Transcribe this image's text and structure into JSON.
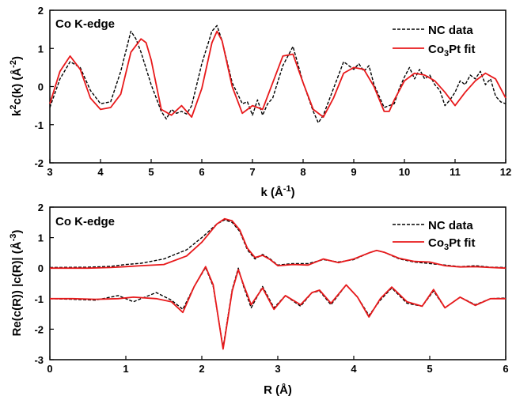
{
  "chart_data": [
    {
      "type": "line",
      "annotation": "Co K-edge",
      "xlabel": "k (Å⁻¹)",
      "ylabel": "k²c(k) (Å⁻²)",
      "xlim": [
        3,
        12
      ],
      "ylim": [
        -2,
        2
      ],
      "xticks": [
        3,
        4,
        5,
        6,
        7,
        8,
        9,
        10,
        11,
        12
      ],
      "yticks": [
        -2,
        -1,
        0,
        1,
        2
      ],
      "legend": "top-right",
      "series": [
        {
          "name": "NC data",
          "color": "#000000",
          "style": "dashed",
          "x": [
            3.0,
            3.2,
            3.4,
            3.6,
            3.8,
            4.0,
            4.2,
            4.4,
            4.6,
            4.7,
            4.8,
            5.0,
            5.2,
            5.3,
            5.4,
            5.5,
            5.6,
            5.7,
            5.8,
            6.0,
            6.2,
            6.3,
            6.4,
            6.6,
            6.8,
            6.9,
            7.0,
            7.1,
            7.2,
            7.3,
            7.4,
            7.6,
            7.8,
            8.0,
            8.2,
            8.3,
            8.4,
            8.6,
            8.7,
            8.8,
            9.0,
            9.1,
            9.2,
            9.3,
            9.4,
            9.6,
            9.7,
            9.8,
            9.9,
            10.0,
            10.1,
            10.2,
            10.3,
            10.4,
            10.5,
            10.6,
            10.7,
            10.8,
            10.9,
            11.0,
            11.1,
            11.2,
            11.3,
            11.4,
            11.5,
            11.6,
            11.7,
            11.8,
            11.9,
            12.0
          ],
          "values": [
            -0.55,
            0.2,
            0.65,
            0.5,
            -0.1,
            -0.45,
            -0.4,
            0.4,
            1.45,
            1.25,
            0.9,
            0.05,
            -0.65,
            -0.85,
            -0.6,
            -0.7,
            -0.65,
            -0.72,
            -0.5,
            0.6,
            1.45,
            1.6,
            1.2,
            0.1,
            -0.45,
            -0.4,
            -0.75,
            -0.35,
            -0.75,
            -0.45,
            -0.3,
            0.55,
            1.05,
            0.1,
            -0.65,
            -0.95,
            -0.75,
            -0.05,
            0.3,
            0.65,
            0.45,
            0.6,
            0.4,
            0.55,
            0.05,
            -0.55,
            -0.5,
            -0.45,
            -0.05,
            0.25,
            0.5,
            0.2,
            0.45,
            0.2,
            0.3,
            0.05,
            -0.1,
            -0.5,
            -0.35,
            -0.15,
            0.15,
            0.05,
            0.3,
            0.2,
            0.4,
            0.05,
            0.2,
            -0.25,
            -0.4,
            -0.45
          ]
        },
        {
          "name": "Co₃Pt fit",
          "color": "#e8191b",
          "style": "solid",
          "x": [
            3.0,
            3.2,
            3.4,
            3.6,
            3.8,
            4.0,
            4.2,
            4.4,
            4.6,
            4.8,
            4.9,
            5.0,
            5.2,
            5.4,
            5.6,
            5.8,
            6.0,
            6.2,
            6.3,
            6.4,
            6.6,
            6.8,
            7.0,
            7.2,
            7.4,
            7.6,
            7.8,
            8.0,
            8.2,
            8.4,
            8.6,
            8.8,
            9.0,
            9.2,
            9.4,
            9.6,
            9.7,
            9.8,
            10.0,
            10.2,
            10.4,
            10.6,
            10.8,
            11.0,
            11.2,
            11.4,
            11.6,
            11.8,
            12.0
          ],
          "values": [
            -0.45,
            0.4,
            0.8,
            0.45,
            -0.3,
            -0.6,
            -0.55,
            -0.2,
            0.9,
            1.25,
            1.15,
            0.7,
            -0.6,
            -0.75,
            -0.5,
            -0.8,
            -0.05,
            1.15,
            1.45,
            1.2,
            0.0,
            -0.7,
            -0.5,
            -0.6,
            0.1,
            0.8,
            0.85,
            0.1,
            -0.6,
            -0.8,
            -0.3,
            0.35,
            0.5,
            0.45,
            0.0,
            -0.65,
            -0.65,
            -0.35,
            0.15,
            0.35,
            0.3,
            0.15,
            -0.15,
            -0.5,
            -0.15,
            0.15,
            0.35,
            0.2,
            -0.3
          ]
        }
      ]
    },
    {
      "type": "line",
      "annotation": "Co K-edge",
      "xlabel": "R (Å)",
      "ylabel": "Re(c(R))  |c(R)| (Å⁻³)",
      "xlim": [
        0,
        6
      ],
      "ylim": [
        -3,
        2
      ],
      "xticks": [
        0,
        1,
        2,
        3,
        4,
        5,
        6
      ],
      "yticks": [
        -3,
        -2,
        -1,
        0,
        1,
        2
      ],
      "legend": "top-right",
      "series": [
        {
          "name": "NC data |c(R)|",
          "color": "#000000",
          "style": "dashed",
          "x": [
            0.0,
            0.5,
            0.8,
            1.0,
            1.2,
            1.5,
            1.8,
            2.0,
            2.2,
            2.3,
            2.4,
            2.5,
            2.6,
            2.7,
            2.8,
            2.9,
            3.0,
            3.2,
            3.4,
            3.6,
            3.8,
            4.0,
            4.2,
            4.3,
            4.4,
            4.6,
            4.8,
            5.0,
            5.2,
            5.4,
            5.6,
            5.8,
            6.0
          ],
          "values": [
            0.02,
            0.03,
            0.06,
            0.12,
            0.16,
            0.3,
            0.6,
            1.0,
            1.45,
            1.58,
            1.5,
            1.2,
            0.6,
            0.3,
            0.45,
            0.3,
            0.1,
            0.15,
            0.15,
            0.28,
            0.2,
            0.28,
            0.5,
            0.58,
            0.52,
            0.3,
            0.2,
            0.15,
            0.1,
            0.05,
            0.08,
            0.03,
            0.02
          ]
        },
        {
          "name": "Co₃Pt fit |c(R)|",
          "color": "#e8191b",
          "style": "solid",
          "x": [
            0.0,
            0.5,
            0.8,
            1.0,
            1.2,
            1.5,
            1.8,
            2.0,
            2.2,
            2.3,
            2.4,
            2.5,
            2.6,
            2.7,
            2.8,
            2.9,
            3.0,
            3.2,
            3.4,
            3.6,
            3.8,
            4.0,
            4.2,
            4.3,
            4.4,
            4.6,
            4.8,
            5.0,
            5.2,
            5.4,
            5.6,
            5.8,
            6.0
          ],
          "values": [
            0.0,
            0.0,
            0.02,
            0.05,
            0.08,
            0.12,
            0.4,
            0.85,
            1.45,
            1.62,
            1.55,
            1.25,
            0.65,
            0.35,
            0.42,
            0.28,
            0.08,
            0.12,
            0.1,
            0.3,
            0.18,
            0.3,
            0.5,
            0.58,
            0.52,
            0.32,
            0.22,
            0.2,
            0.08,
            0.04,
            0.05,
            0.02,
            0.0
          ]
        },
        {
          "name": "NC data Re(c(R))",
          "color": "#000000",
          "style": "dashed",
          "x": [
            0.0,
            0.3,
            0.6,
            0.9,
            1.1,
            1.4,
            1.6,
            1.75,
            1.9,
            2.05,
            2.15,
            2.28,
            2.4,
            2.48,
            2.55,
            2.65,
            2.8,
            2.95,
            3.1,
            3.3,
            3.45,
            3.55,
            3.7,
            3.9,
            4.05,
            4.2,
            4.35,
            4.5,
            4.7,
            4.9,
            5.05,
            5.2,
            5.4,
            5.6,
            5.8,
            6.0
          ],
          "values": [
            -1.0,
            -1.02,
            -1.05,
            -0.9,
            -1.1,
            -0.8,
            -1.05,
            -1.35,
            -0.6,
            0.02,
            -0.6,
            -2.6,
            -0.7,
            0.0,
            -0.6,
            -1.3,
            -0.6,
            -1.3,
            -0.9,
            -1.25,
            -0.8,
            -0.75,
            -1.2,
            -0.55,
            -0.95,
            -1.55,
            -1.05,
            -0.65,
            -1.15,
            -1.25,
            -0.75,
            -1.3,
            -0.95,
            -1.2,
            -1.0,
            -0.98
          ]
        },
        {
          "name": "Co₃Pt fit Re(c(R))",
          "color": "#e8191b",
          "style": "solid",
          "x": [
            0.0,
            0.3,
            0.6,
            0.9,
            1.1,
            1.4,
            1.6,
            1.75,
            1.9,
            2.05,
            2.15,
            2.28,
            2.4,
            2.48,
            2.55,
            2.65,
            2.8,
            2.95,
            3.1,
            3.3,
            3.45,
            3.55,
            3.7,
            3.9,
            4.05,
            4.2,
            4.35,
            4.5,
            4.7,
            4.9,
            5.05,
            5.2,
            5.4,
            5.6,
            5.8,
            6.0
          ],
          "values": [
            -1.0,
            -1.0,
            -1.02,
            -1.0,
            -0.95,
            -1.0,
            -1.1,
            -1.45,
            -0.6,
            0.05,
            -0.55,
            -2.65,
            -0.75,
            -0.05,
            -0.55,
            -1.2,
            -0.65,
            -1.35,
            -0.9,
            -1.2,
            -0.8,
            -0.72,
            -1.15,
            -0.55,
            -0.95,
            -1.6,
            -1.0,
            -0.62,
            -1.1,
            -1.25,
            -0.7,
            -1.3,
            -0.95,
            -1.22,
            -1.0,
            -1.0
          ]
        }
      ]
    }
  ],
  "legend": {
    "data_label": "NC data",
    "fit_label_main": "Co",
    "fit_label_sub": "3",
    "fit_label_rest": "Pt fit"
  }
}
